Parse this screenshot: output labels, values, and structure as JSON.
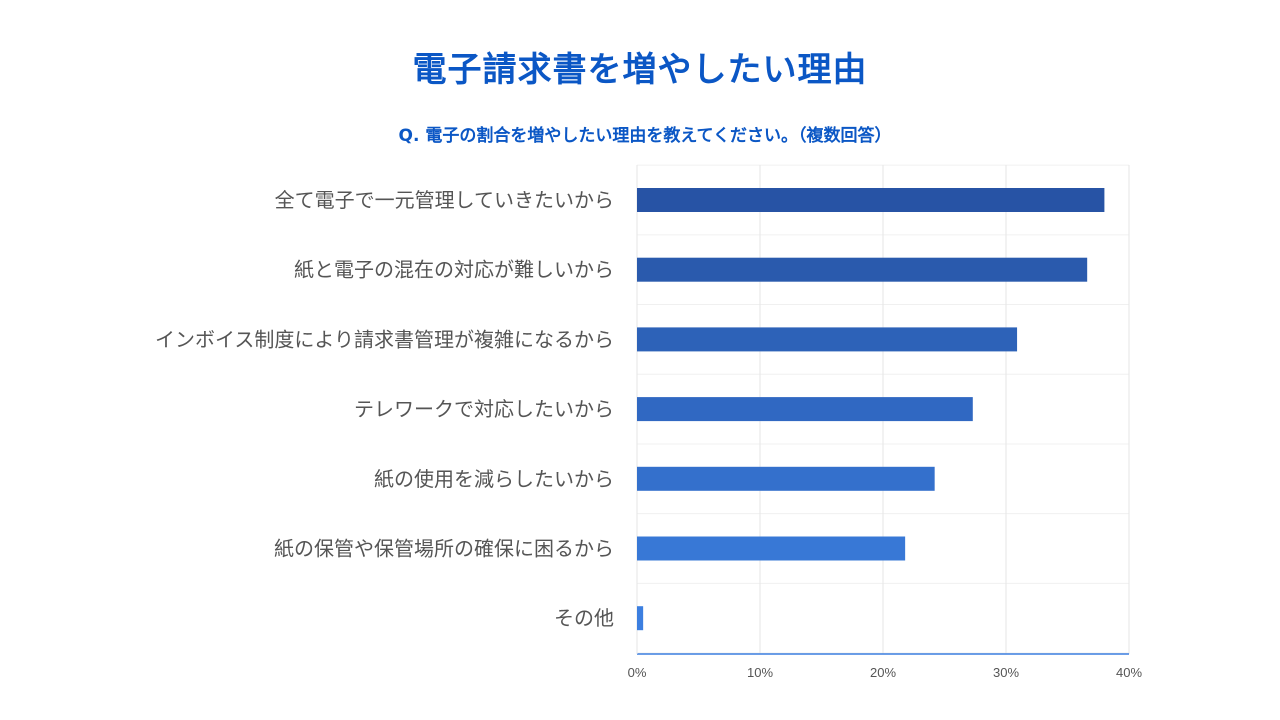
{
  "title": "電子請求書を増やしたい理由",
  "subtitle": "Q. 電子の割合を増やしたい理由を教えてください。（複数回答）",
  "chart_data": {
    "type": "bar",
    "orientation": "horizontal",
    "categories": [
      "全て電子で一元管理していきたいから",
      "紙と電子の混在の対応が難しいから",
      "インボイス制度により請求書管理が複雑になるから",
      "テレワークで対応したいから",
      "紙の使用を減らしたいから",
      "紙の保管や保管場所の確保に困るから",
      "その他"
    ],
    "values": [
      38.0,
      36.6,
      30.9,
      27.3,
      24.2,
      21.8,
      0.5
    ],
    "xlim": [
      0,
      40
    ],
    "ticks": [
      0,
      10,
      20,
      30,
      40
    ],
    "tick_labels": [
      "0%",
      "10%",
      "20%",
      "30%",
      "40%"
    ],
    "grid": true,
    "colors": [
      "#2753a5",
      "#2a5aad",
      "#2d62b8",
      "#3068c2",
      "#3470cc",
      "#3878d6",
      "#3c7fe0"
    ],
    "axis_color": "#3c7fe0",
    "grid_color": "#e6e6e6"
  }
}
